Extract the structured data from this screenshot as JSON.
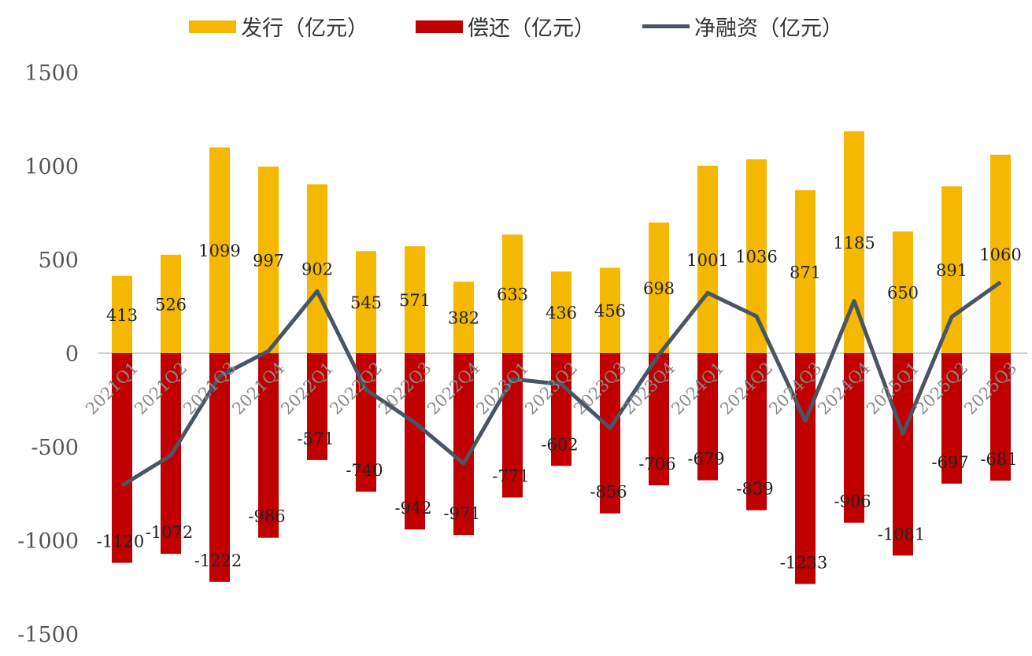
{
  "chart_data": {
    "type": "bar",
    "categories": [
      "2021Q1",
      "2021Q2",
      "2021Q3",
      "2021Q4",
      "2022Q1",
      "2022Q2",
      "2022Q3",
      "2022Q4",
      "2023Q1",
      "2023Q2",
      "2023Q3",
      "2023Q4",
      "2024Q1",
      "2024Q2",
      "2024Q3",
      "2024Q4",
      "2025Q1",
      "2025Q2",
      "2025Q3"
    ],
    "series": [
      {
        "name": "发行（亿元）",
        "type": "bar",
        "color": "#f5b800",
        "values": [
          413,
          526,
          1099,
          997,
          902,
          545,
          571,
          382,
          633,
          436,
          456,
          698,
          1001,
          1036,
          871,
          1185,
          650,
          891,
          1060
        ]
      },
      {
        "name": "偿还（亿元）",
        "type": "bar",
        "color": "#c00000",
        "values": [
          -1120,
          -1072,
          -1222,
          -986,
          -571,
          -740,
          -942,
          -971,
          -771,
          -602,
          -856,
          -706,
          -679,
          -839,
          -1233,
          -906,
          -1081,
          -697,
          -681
        ]
      },
      {
        "name": "净融资（亿元）",
        "type": "line",
        "color": "#4a5563",
        "values": [
          -707,
          -546,
          -123,
          11,
          331,
          -195,
          -371,
          -589,
          -138,
          -166,
          -400,
          -8,
          322,
          197,
          -362,
          279,
          -431,
          194,
          379
        ]
      }
    ],
    "yticks": [
      "1500",
      "1000",
      "500",
      "0",
      "-500",
      "-1000",
      "-1500"
    ],
    "ylim": [
      -1500,
      1500
    ],
    "legend": "top",
    "grid": false
  }
}
